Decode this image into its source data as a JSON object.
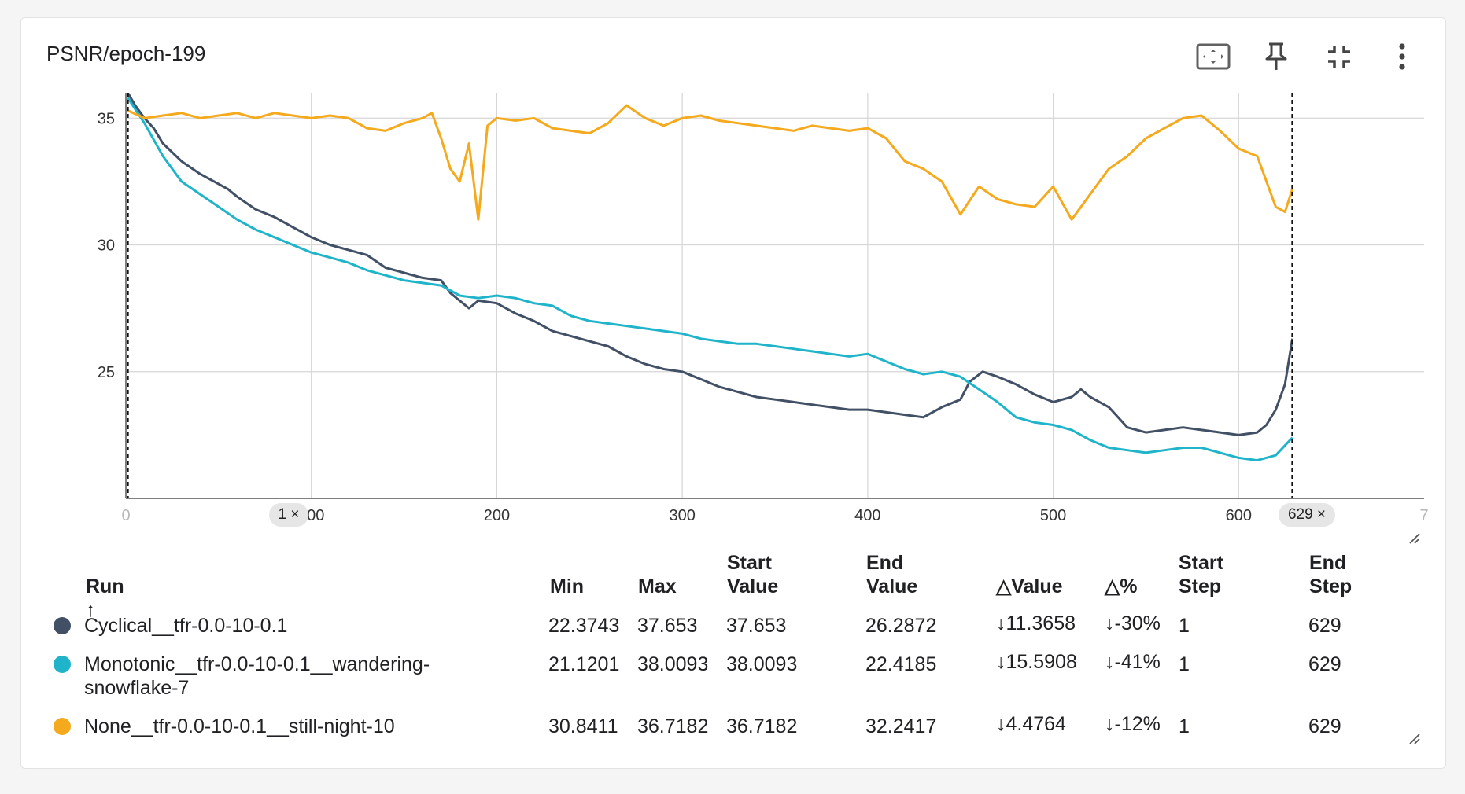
{
  "card": {
    "title": "PSNR/epoch-199"
  },
  "toolbar": [
    {
      "name": "fit-to-data-icon"
    },
    {
      "name": "pin-icon"
    },
    {
      "name": "collapse-icon"
    },
    {
      "name": "more-vert-icon"
    }
  ],
  "chart_data": {
    "type": "line",
    "title": "PSNR/epoch-199",
    "xlim": [
      0,
      700
    ],
    "ylim": [
      20,
      36
    ],
    "x_ticks": [
      "0",
      "100",
      "200",
      "300",
      "400",
      "500",
      "600",
      "7"
    ],
    "y_ticks": [
      "25",
      "30",
      "35"
    ],
    "grid": true,
    "range_markers": {
      "start": {
        "step": 1,
        "label": "1 ×"
      },
      "end": {
        "step": 629,
        "label": "629 ×"
      }
    },
    "series": [
      {
        "name": "Cyclical__tfr-0.0-10-0.1",
        "color": "#425066",
        "points": [
          [
            1,
            36.0
          ],
          [
            5,
            35.5
          ],
          [
            10,
            35.0
          ],
          [
            15,
            34.6
          ],
          [
            20,
            34.0
          ],
          [
            30,
            33.3
          ],
          [
            40,
            32.8
          ],
          [
            50,
            32.4
          ],
          [
            55,
            32.2
          ],
          [
            60,
            31.9
          ],
          [
            70,
            31.4
          ],
          [
            80,
            31.1
          ],
          [
            90,
            30.7
          ],
          [
            100,
            30.3
          ],
          [
            110,
            30.0
          ],
          [
            120,
            29.8
          ],
          [
            130,
            29.6
          ],
          [
            140,
            29.1
          ],
          [
            150,
            28.9
          ],
          [
            160,
            28.7
          ],
          [
            170,
            28.6
          ],
          [
            175,
            28.1
          ],
          [
            180,
            27.8
          ],
          [
            185,
            27.5
          ],
          [
            190,
            27.8
          ],
          [
            200,
            27.7
          ],
          [
            210,
            27.3
          ],
          [
            220,
            27.0
          ],
          [
            230,
            26.6
          ],
          [
            240,
            26.4
          ],
          [
            250,
            26.2
          ],
          [
            260,
            26.0
          ],
          [
            270,
            25.6
          ],
          [
            280,
            25.3
          ],
          [
            290,
            25.1
          ],
          [
            300,
            25.0
          ],
          [
            310,
            24.7
          ],
          [
            320,
            24.4
          ],
          [
            330,
            24.2
          ],
          [
            340,
            24.0
          ],
          [
            350,
            23.9
          ],
          [
            360,
            23.8
          ],
          [
            370,
            23.7
          ],
          [
            380,
            23.6
          ],
          [
            390,
            23.5
          ],
          [
            400,
            23.5
          ],
          [
            410,
            23.4
          ],
          [
            420,
            23.3
          ],
          [
            430,
            23.2
          ],
          [
            440,
            23.6
          ],
          [
            450,
            23.9
          ],
          [
            455,
            24.6
          ],
          [
            462,
            25.0
          ],
          [
            470,
            24.8
          ],
          [
            480,
            24.5
          ],
          [
            490,
            24.1
          ],
          [
            500,
            23.8
          ],
          [
            510,
            24.0
          ],
          [
            515,
            24.3
          ],
          [
            520,
            24.0
          ],
          [
            530,
            23.6
          ],
          [
            540,
            22.8
          ],
          [
            550,
            22.6
          ],
          [
            560,
            22.7
          ],
          [
            570,
            22.8
          ],
          [
            580,
            22.7
          ],
          [
            590,
            22.6
          ],
          [
            600,
            22.5
          ],
          [
            610,
            22.6
          ],
          [
            615,
            22.9
          ],
          [
            620,
            23.5
          ],
          [
            625,
            24.5
          ],
          [
            629,
            26.3
          ]
        ]
      },
      {
        "name": "Monotonic__tfr-0.0-10-0.1__wandering-snowflake-7",
        "color": "#1fb4c9",
        "points": [
          [
            1,
            35.8
          ],
          [
            10,
            34.8
          ],
          [
            20,
            33.5
          ],
          [
            30,
            32.5
          ],
          [
            40,
            32.0
          ],
          [
            50,
            31.5
          ],
          [
            60,
            31.0
          ],
          [
            70,
            30.6
          ],
          [
            80,
            30.3
          ],
          [
            90,
            30.0
          ],
          [
            100,
            29.7
          ],
          [
            110,
            29.5
          ],
          [
            120,
            29.3
          ],
          [
            130,
            29.0
          ],
          [
            140,
            28.8
          ],
          [
            150,
            28.6
          ],
          [
            160,
            28.5
          ],
          [
            170,
            28.4
          ],
          [
            180,
            28.0
          ],
          [
            190,
            27.9
          ],
          [
            200,
            28.0
          ],
          [
            210,
            27.9
          ],
          [
            220,
            27.7
          ],
          [
            230,
            27.6
          ],
          [
            240,
            27.2
          ],
          [
            250,
            27.0
          ],
          [
            260,
            26.9
          ],
          [
            270,
            26.8
          ],
          [
            280,
            26.7
          ],
          [
            290,
            26.6
          ],
          [
            300,
            26.5
          ],
          [
            310,
            26.3
          ],
          [
            320,
            26.2
          ],
          [
            330,
            26.1
          ],
          [
            340,
            26.1
          ],
          [
            350,
            26.0
          ],
          [
            360,
            25.9
          ],
          [
            370,
            25.8
          ],
          [
            380,
            25.7
          ],
          [
            390,
            25.6
          ],
          [
            400,
            25.7
          ],
          [
            410,
            25.4
          ],
          [
            420,
            25.1
          ],
          [
            430,
            24.9
          ],
          [
            440,
            25.0
          ],
          [
            450,
            24.8
          ],
          [
            460,
            24.3
          ],
          [
            470,
            23.8
          ],
          [
            480,
            23.2
          ],
          [
            490,
            23.0
          ],
          [
            500,
            22.9
          ],
          [
            510,
            22.7
          ],
          [
            520,
            22.3
          ],
          [
            530,
            22.0
          ],
          [
            540,
            21.9
          ],
          [
            550,
            21.8
          ],
          [
            560,
            21.9
          ],
          [
            570,
            22.0
          ],
          [
            580,
            22.0
          ],
          [
            590,
            21.8
          ],
          [
            600,
            21.6
          ],
          [
            610,
            21.5
          ],
          [
            620,
            21.7
          ],
          [
            629,
            22.4
          ]
        ]
      },
      {
        "name": "None__tfr-0.0-10-0.1__still-night-10",
        "color": "#f5a91c",
        "points": [
          [
            1,
            35.3
          ],
          [
            10,
            35.0
          ],
          [
            20,
            35.1
          ],
          [
            30,
            35.2
          ],
          [
            40,
            35.0
          ],
          [
            50,
            35.1
          ],
          [
            60,
            35.2
          ],
          [
            70,
            35.0
          ],
          [
            80,
            35.2
          ],
          [
            90,
            35.1
          ],
          [
            100,
            35.0
          ],
          [
            110,
            35.1
          ],
          [
            120,
            35.0
          ],
          [
            130,
            34.6
          ],
          [
            140,
            34.5
          ],
          [
            150,
            34.8
          ],
          [
            160,
            35.0
          ],
          [
            165,
            35.2
          ],
          [
            170,
            34.2
          ],
          [
            175,
            33.0
          ],
          [
            180,
            32.5
          ],
          [
            185,
            34.0
          ],
          [
            190,
            31.0
          ],
          [
            195,
            34.7
          ],
          [
            200,
            35.0
          ],
          [
            210,
            34.9
          ],
          [
            220,
            35.0
          ],
          [
            230,
            34.6
          ],
          [
            240,
            34.5
          ],
          [
            250,
            34.4
          ],
          [
            260,
            34.8
          ],
          [
            270,
            35.5
          ],
          [
            280,
            35.0
          ],
          [
            290,
            34.7
          ],
          [
            300,
            35.0
          ],
          [
            310,
            35.1
          ],
          [
            320,
            34.9
          ],
          [
            330,
            34.8
          ],
          [
            340,
            34.7
          ],
          [
            350,
            34.6
          ],
          [
            360,
            34.5
          ],
          [
            370,
            34.7
          ],
          [
            380,
            34.6
          ],
          [
            390,
            34.5
          ],
          [
            400,
            34.6
          ],
          [
            410,
            34.2
          ],
          [
            420,
            33.3
          ],
          [
            430,
            33.0
          ],
          [
            440,
            32.5
          ],
          [
            450,
            31.2
          ],
          [
            460,
            32.3
          ],
          [
            470,
            31.8
          ],
          [
            480,
            31.6
          ],
          [
            490,
            31.5
          ],
          [
            500,
            32.3
          ],
          [
            510,
            31.0
          ],
          [
            520,
            32.0
          ],
          [
            530,
            33.0
          ],
          [
            540,
            33.5
          ],
          [
            550,
            34.2
          ],
          [
            560,
            34.6
          ],
          [
            570,
            35.0
          ],
          [
            580,
            35.1
          ],
          [
            590,
            34.5
          ],
          [
            600,
            33.8
          ],
          [
            610,
            33.5
          ],
          [
            620,
            31.5
          ],
          [
            625,
            31.3
          ],
          [
            629,
            32.2
          ]
        ]
      }
    ]
  },
  "table": {
    "headers": {
      "run": "Run ↑",
      "min": "Min",
      "max": "Max",
      "start_value_1": "Start",
      "start_value_2": "Value",
      "end_value_1": "End",
      "end_value_2": "Value",
      "delta_value": "△Value",
      "delta_pct": "△%",
      "start_step_1": "Start",
      "start_step_2": "Step",
      "end_step_1": "End",
      "end_step_2": "Step"
    },
    "rows": [
      {
        "run_1": "Cyclical__tfr-0.0-10-0.1",
        "run_2": "",
        "color": "#425066",
        "min": "22.3743",
        "max": "37.653",
        "start_value": "37.653",
        "end_value": "26.2872",
        "delta_value": "↓11.3658",
        "delta_pct": "↓-30%",
        "start_step": "1",
        "end_step": "629"
      },
      {
        "run_1": "Monotonic__tfr-0.0-10-0.1__wandering-",
        "run_2": "snowflake-7",
        "color": "#1fb4c9",
        "min": "21.1201",
        "max": "38.0093",
        "start_value": "38.0093",
        "end_value": "22.4185",
        "delta_value": "↓15.5908",
        "delta_pct": "↓-41%",
        "start_step": "1",
        "end_step": "629"
      },
      {
        "run_1": "None__tfr-0.0-10-0.1__still-night-10",
        "run_2": "",
        "color": "#f5a91c",
        "min": "30.8411",
        "max": "36.7182",
        "start_value": "36.7182",
        "end_value": "32.2417",
        "delta_value": "↓4.4764",
        "delta_pct": "↓-12%",
        "start_step": "1",
        "end_step": "629"
      }
    ]
  }
}
